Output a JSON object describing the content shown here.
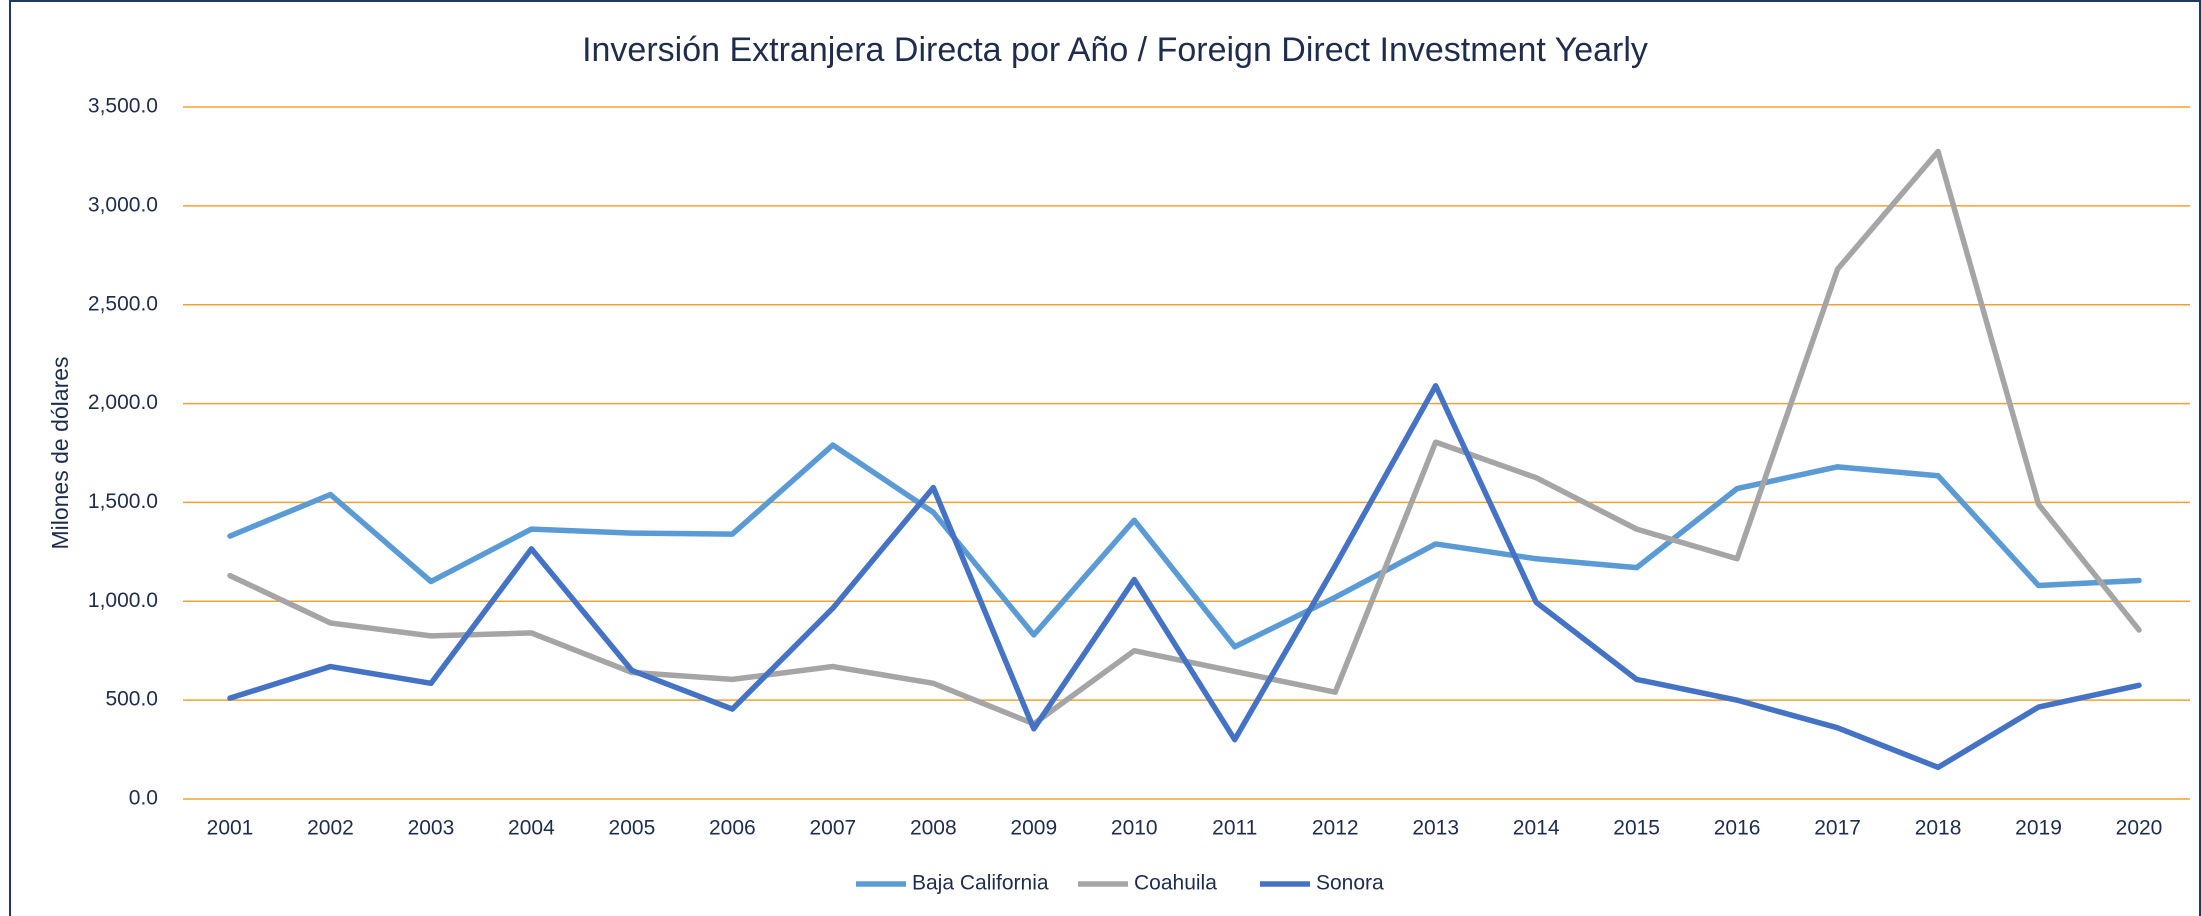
{
  "chart_data": {
    "type": "line",
    "title": "Inversión Extranjera Directa por Año / Foreign Direct Investment Yearly",
    "y_label": "Milones de dólares",
    "categories": [
      "2001",
      "2002",
      "2003",
      "2004",
      "2005",
      "2006",
      "2007",
      "2008",
      "2009",
      "2010",
      "2011",
      "2012",
      "2013",
      "2014",
      "2015",
      "2016",
      "2017",
      "2018",
      "2019",
      "2020"
    ],
    "series": [
      {
        "name": "Baja California",
        "color": "#5b9bd5",
        "values": [
          1330,
          1540,
          1100,
          1365,
          1345,
          1340,
          1790,
          1450,
          830,
          1410,
          770,
          1020,
          1290,
          1215,
          1170,
          1570,
          1680,
          1635,
          1080,
          1105
        ]
      },
      {
        "name": "Coahuila",
        "color": "#a5a5a5",
        "values": [
          1130,
          890,
          825,
          840,
          640,
          605,
          670,
          585,
          380,
          750,
          645,
          540,
          1805,
          1625,
          1365,
          1215,
          2680,
          3275,
          1490,
          855
        ]
      },
      {
        "name": "Sonora",
        "color": "#4472c4",
        "values": [
          510,
          670,
          585,
          1265,
          650,
          455,
          965,
          1575,
          355,
          1110,
          300,
          1180,
          2090,
          995,
          605,
          500,
          360,
          160,
          465,
          575
        ]
      }
    ],
    "ylim": [
      0,
      3500
    ],
    "yticks": [
      {
        "value": 0,
        "label": "0.0"
      },
      {
        "value": 500,
        "label": "500.0"
      },
      {
        "value": 1000,
        "label": "1,000.0"
      },
      {
        "value": 1500,
        "label": "1,500.0"
      },
      {
        "value": 2000,
        "label": "2,000.0"
      },
      {
        "value": 2500,
        "label": "2,500.0"
      },
      {
        "value": 3000,
        "label": "3,000.0"
      },
      {
        "value": 3500,
        "label": "3,500.0"
      }
    ],
    "grid": true,
    "grid_color": "#f5a030",
    "legend": "bottom"
  }
}
